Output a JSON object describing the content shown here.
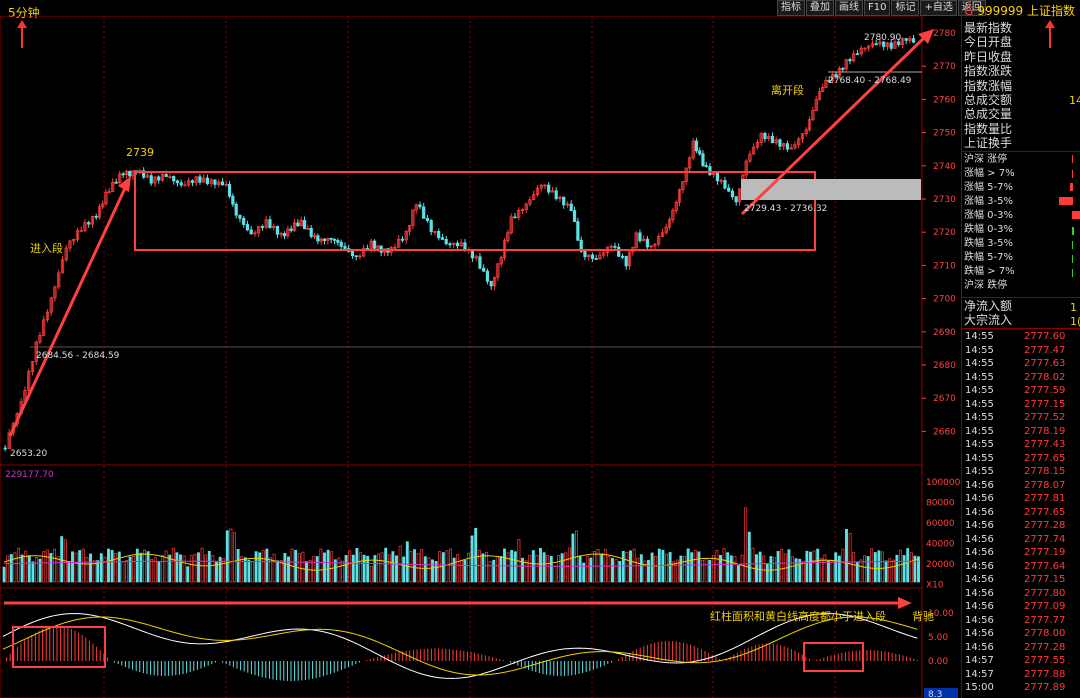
{
  "timeframe": "5分钟",
  "toolbar": [
    "指标",
    "叠加",
    "画线",
    "F10",
    "标记",
    "+自选",
    "返回"
  ],
  "index": {
    "code": "999999",
    "name": "上证指数",
    "badge": "G"
  },
  "side_fields": [
    "最新指数",
    "今日开盘",
    "昨日收盘",
    "指数涨跌",
    "指数涨幅",
    "总成交额",
    "总成交量",
    "指数量比",
    "上证换手",
    "沪深 涨停",
    "涨幅 > 7%",
    "涨幅 5-7%",
    "涨幅 3-5%",
    "涨幅 0-3%",
    "跌幅 0-3%",
    "跌幅 3-5%",
    "跌幅 5-7%",
    "跌幅 > 7%",
    "沪深 跌停",
    "净流入额",
    "大宗流入"
  ],
  "side_values": {
    "total_amount": "14",
    "net_inflow": "1",
    "block_inflow": "1("
  },
  "ticks": [
    {
      "t": "14:55",
      "p": "2777.60"
    },
    {
      "t": "14:55",
      "p": "2777.47"
    },
    {
      "t": "14:55",
      "p": "2777.63"
    },
    {
      "t": "14:55",
      "p": "2778.02"
    },
    {
      "t": "14:55",
      "p": "2777.59"
    },
    {
      "t": "14:55",
      "p": "2777.15"
    },
    {
      "t": "14:55",
      "p": "2777.52"
    },
    {
      "t": "14:55",
      "p": "2778.19"
    },
    {
      "t": "14:55",
      "p": "2777.43"
    },
    {
      "t": "14:55",
      "p": "2777.65"
    },
    {
      "t": "14:55",
      "p": "2778.15"
    },
    {
      "t": "14:56",
      "p": "2778.07"
    },
    {
      "t": "14:56",
      "p": "2777.81"
    },
    {
      "t": "14:56",
      "p": "2777.65"
    },
    {
      "t": "14:56",
      "p": "2777.28"
    },
    {
      "t": "14:56",
      "p": "2777.74"
    },
    {
      "t": "14:56",
      "p": "2777.19"
    },
    {
      "t": "14:56",
      "p": "2777.64"
    },
    {
      "t": "14:56",
      "p": "2777.15"
    },
    {
      "t": "14:56",
      "p": "2777.80"
    },
    {
      "t": "14:56",
      "p": "2777.09"
    },
    {
      "t": "14:56",
      "p": "2777.77"
    },
    {
      "t": "14:56",
      "p": "2778.00"
    },
    {
      "t": "14:56",
      "p": "2777.28"
    },
    {
      "t": "14:57",
      "p": "2777.55"
    },
    {
      "t": "14:57",
      "p": "2777.88"
    },
    {
      "t": "15:00",
      "p": "2777.89"
    }
  ],
  "price_axis": [
    "2780",
    "2770",
    "2760",
    "2750",
    "2740",
    "2730",
    "2720",
    "2710",
    "2700",
    "2690",
    "2680",
    "2670",
    "2660"
  ],
  "volume_axis": [
    "100000",
    "80000",
    "60000",
    "40000",
    "20000",
    "X10"
  ],
  "macd_axis": [
    "10.00",
    "5.00",
    "0.00"
  ],
  "chart_labels": {
    "high": "2780.90",
    "low": "2653.20",
    "level_2739": "2739",
    "entry": "进入段",
    "exit": "离开段",
    "range_upper": "2768.40 - 2768.49",
    "range_box": "2729.43 - 2736.32",
    "range_low": "2684.56 - 2684.59",
    "volume_info": "229177.70",
    "divergence_note": "红柱面积和黄白线高度都小于进入段",
    "divergence_word": "背驰",
    "macd_value": "8.3"
  },
  "colors": {
    "up": "#ff3b3b",
    "down": "#5ce1e6",
    "highlight": "#f0d000",
    "box": "#ff4040"
  }
}
